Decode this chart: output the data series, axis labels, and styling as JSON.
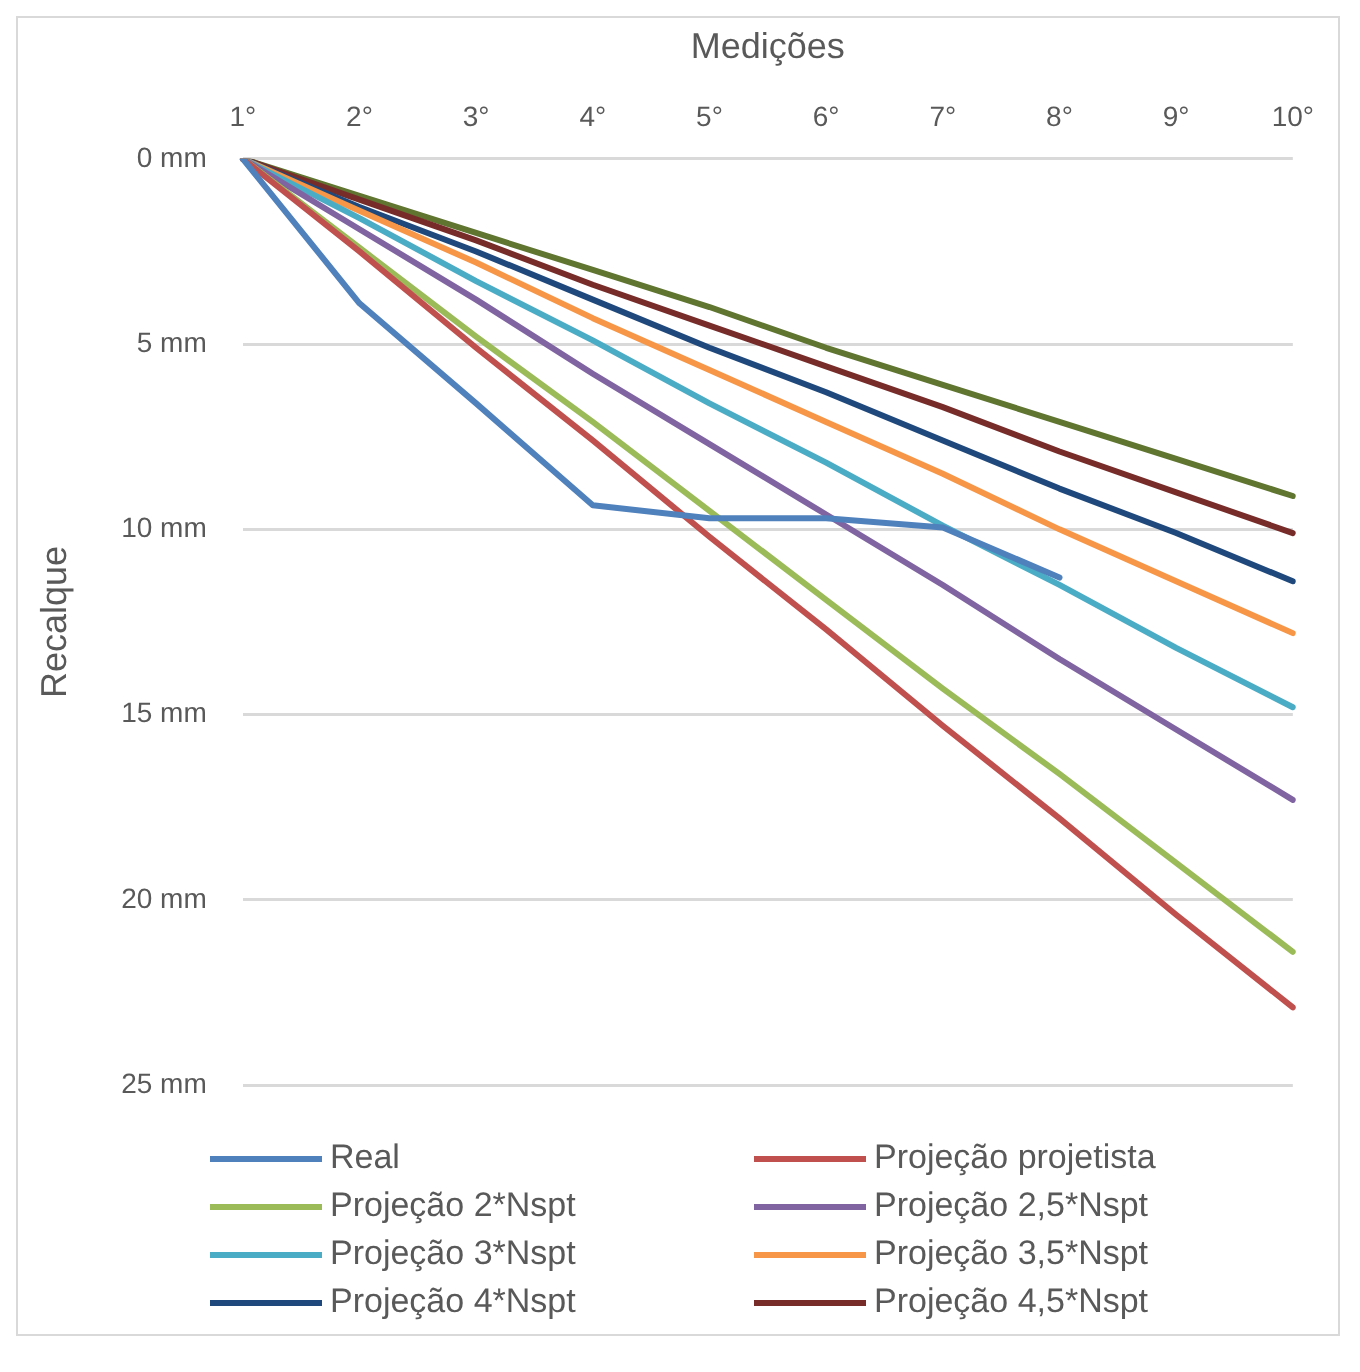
{
  "chart_data": {
    "type": "line",
    "xlabel": "Medições",
    "ylabel": "Recalque",
    "categories": [
      "1°",
      "2°",
      "3°",
      "4°",
      "5°",
      "6°",
      "7°",
      "8°",
      "9°",
      "10°"
    ],
    "ylim": [
      25,
      0
    ],
    "yticks": [
      {
        "value": 0,
        "label": "0 mm"
      },
      {
        "value": 5,
        "label": "5 mm"
      },
      {
        "value": 10,
        "label": "10 mm"
      },
      {
        "value": 15,
        "label": "15 mm"
      },
      {
        "value": 20,
        "label": "20 mm"
      },
      {
        "value": 25,
        "label": "25 mm"
      }
    ],
    "grid": "y",
    "legend": "bottom",
    "marker": "none",
    "line_style": "solid",
    "series": [
      {
        "name": "Real",
        "color": "#4f81bd",
        "values": [
          0,
          3.9,
          6.6,
          9.35,
          9.7,
          9.7,
          9.95,
          11.3,
          null,
          null
        ]
      },
      {
        "name": "Projeção projetista",
        "color": "#c0504d",
        "values": [
          0,
          2.5,
          5.1,
          7.6,
          10.2,
          12.7,
          15.3,
          17.8,
          20.4,
          22.9
        ]
      },
      {
        "name": "Projeção 2*Nspt",
        "color": "#9bbb59",
        "values": [
          0,
          2.4,
          4.8,
          7.1,
          9.5,
          11.9,
          14.3,
          16.6,
          19,
          21.4
        ]
      },
      {
        "name": "Projeção 2,5*Nspt",
        "color": "#8064a2",
        "values": [
          0,
          1.9,
          3.8,
          5.8,
          7.7,
          9.6,
          11.5,
          13.5,
          15.4,
          17.3
        ]
      },
      {
        "name": "Projeção 3*Nspt",
        "color": "#4bacc6",
        "values": [
          0,
          1.6,
          3.3,
          4.9,
          6.6,
          8.2,
          9.9,
          11.5,
          13.2,
          14.8
        ]
      },
      {
        "name": "Projeção 3,5*Nspt",
        "color": "#f79646",
        "values": [
          0,
          1.4,
          2.8,
          4.3,
          5.7,
          7.1,
          8.5,
          10,
          11.4,
          12.8
        ]
      },
      {
        "name": "Projeção 4*Nspt",
        "color": "#1f497d",
        "values": [
          0,
          1.3,
          2.5,
          3.8,
          5.1,
          6.3,
          7.6,
          8.9,
          10.1,
          11.4
        ]
      },
      {
        "name": "Projeção 4,5*Nspt",
        "color": "#772c2a",
        "values": [
          0,
          1.1,
          2.2,
          3.4,
          4.5,
          5.6,
          6.7,
          7.9,
          9,
          10.1
        ]
      },
      {
        "color": "#5f7530",
        "values": [
          0,
          1,
          2,
          3,
          4,
          5.1,
          6.1,
          7.1,
          8.1,
          9.1
        ]
      }
    ]
  }
}
